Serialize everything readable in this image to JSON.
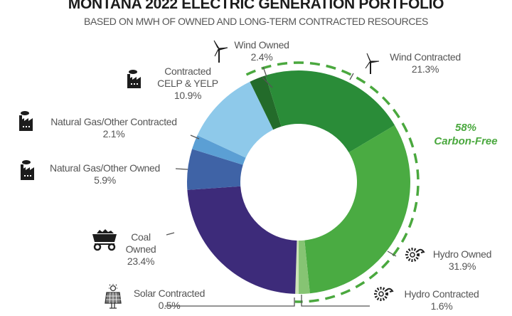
{
  "header": {
    "title": "MONTANA 2022 ELECTRIC GENERATION PORTFOLIO",
    "subtitle": "BASED ON MWH OF OWNED AND LONG-TERM CONTRACTED RESOURCES"
  },
  "annotation": {
    "carbon_free_pct": "58%",
    "carbon_free_label": "Carbon-Free",
    "color": "#4aa83e"
  },
  "labels": {
    "wind_owned": {
      "name": "Wind Owned",
      "value": "2.4%",
      "icon": "wind-turbine-icon"
    },
    "wind_contracted": {
      "name": "Wind Contracted",
      "value": "21.3%",
      "icon": "wind-turbine-icon"
    },
    "celp_yelp": {
      "name1": "Contracted",
      "name2": "CELP & YELP",
      "value": "10.9%",
      "icon": "factory-icon"
    },
    "ng_contracted": {
      "name": "Natural Gas/Other Contracted",
      "value": "2.1%",
      "icon": "factory-icon"
    },
    "ng_owned": {
      "name": "Natural Gas/Other Owned",
      "value": "5.9%",
      "icon": "factory-icon"
    },
    "coal_owned": {
      "name": "Coal Owned",
      "value": "23.4%",
      "icon": "coal-cart-icon"
    },
    "solar_contracted": {
      "name": "Solar Contracted",
      "value": "0.5%",
      "icon": "solar-panel-icon"
    },
    "hydro_owned": {
      "name": "Hydro Owned",
      "value": "31.9%",
      "icon": "hydro-turbine-icon"
    },
    "hydro_contracted": {
      "name": "Hydro Contracted",
      "value": "1.6%",
      "icon": "hydro-turbine-icon"
    }
  },
  "chart_data": {
    "type": "pie",
    "subtype": "donut",
    "title": "MONTANA 2022 ELECTRIC GENERATION PORTFOLIO",
    "subtitle": "BASED ON MWH OF OWNED AND LONG-TERM CONTRACTED RESOURCES",
    "unit": "% of MWh",
    "categories": [
      "Wind Owned",
      "Wind Contracted",
      "Hydro Owned",
      "Hydro Contracted",
      "Solar Contracted",
      "Coal Owned",
      "Natural Gas/Other Owned",
      "Natural Gas/Other Contracted",
      "Contracted CELP & YELP"
    ],
    "values": [
      2.4,
      21.3,
      31.9,
      1.6,
      0.5,
      23.4,
      5.9,
      2.1,
      10.9
    ],
    "colors": [
      "#236b2a",
      "#2a8c38",
      "#4aab42",
      "#86c473",
      "#cde4b7",
      "#3d2b7a",
      "#3f63a6",
      "#5b9fd4",
      "#8ec9ea"
    ],
    "annotations": [
      "58% Carbon-Free (bracketed with dashed arc: Wind Owned, Wind Contracted, Hydro Owned, Hydro Contracted, Solar Contracted)"
    ],
    "legend": "none (direct labels)"
  }
}
